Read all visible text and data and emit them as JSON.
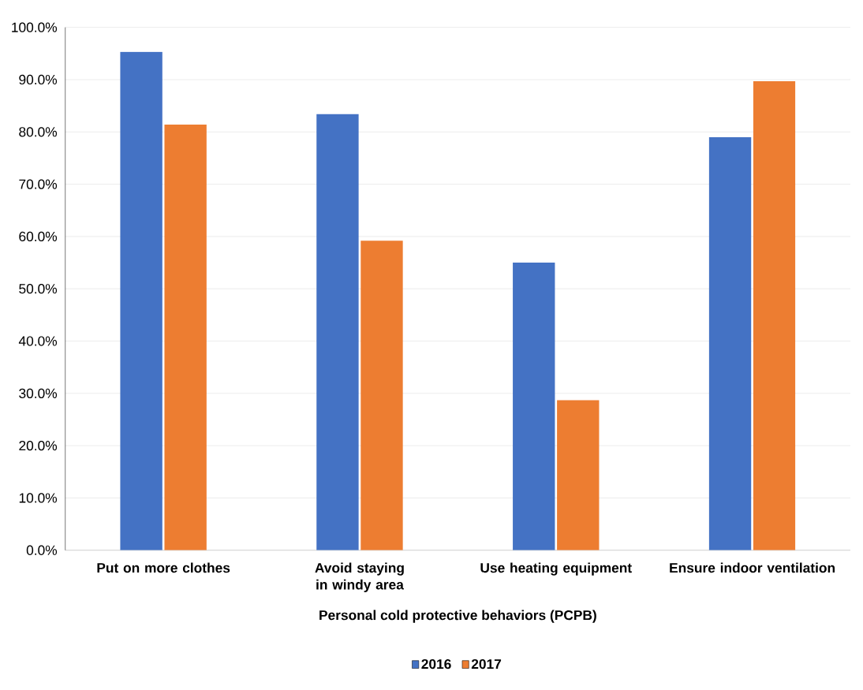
{
  "chart_data": {
    "type": "bar",
    "xlabel": "Personal cold protective behaviors (PCPB)",
    "categories": [
      "Put on more clothes",
      "Avoid staying in windy area",
      "Use heating equipment",
      "Ensure indoor ventilation"
    ],
    "series": [
      {
        "name": "2016",
        "color": "#4472c4",
        "values": [
          95.3,
          83.4,
          55.0,
          79.0
        ]
      },
      {
        "name": "2017",
        "color": "#ed7d31",
        "values": [
          81.4,
          59.2,
          28.7,
          89.7
        ]
      }
    ],
    "ylim": [
      0,
      100
    ],
    "yticks": [
      {
        "value": 0,
        "label": "0.0%"
      },
      {
        "value": 10,
        "label": "10.0%"
      },
      {
        "value": 20,
        "label": "20.0%"
      },
      {
        "value": 30,
        "label": "30.0%"
      },
      {
        "value": 40,
        "label": "40.0%"
      },
      {
        "value": 50,
        "label": "50.0%"
      },
      {
        "value": 60,
        "label": "60.0%"
      },
      {
        "value": 70,
        "label": "70.0%"
      },
      {
        "value": 80,
        "label": "80.0%"
      },
      {
        "value": 90,
        "label": "90.0%"
      },
      {
        "value": 100,
        "label": "100.0%"
      }
    ],
    "grid": "y",
    "legend": "bottom"
  }
}
